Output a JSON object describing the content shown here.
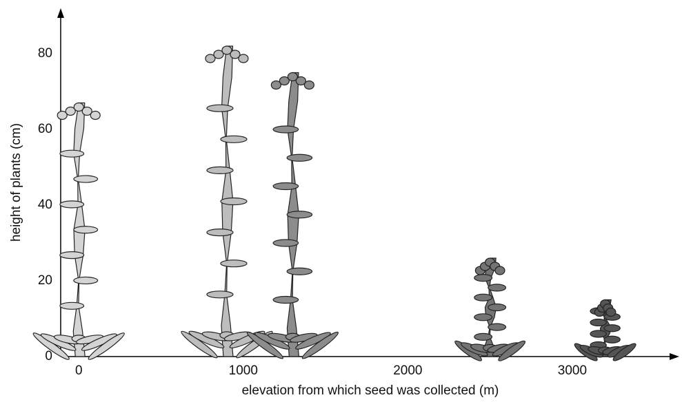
{
  "chart_data": {
    "type": "pictograph",
    "x_label": "elevation from which seed was collected (m)",
    "y_label": "height of plants (cm)",
    "series": [
      {
        "x": [
          0,
          900,
          1300,
          2500,
          3200
        ],
        "values": [
          67,
          82,
          75,
          26,
          15
        ],
        "colors": [
          "#d4d4d4",
          "#bdbdbd",
          "#8c8c8c",
          "#747474",
          "#555555"
        ]
      }
    ],
    "xlim": [
      -110,
      3650
    ],
    "xticks": [
      0,
      1000,
      2000,
      3000
    ],
    "ylim": [
      0,
      92
    ],
    "yticks": [
      0,
      20,
      40,
      60,
      80
    ]
  }
}
